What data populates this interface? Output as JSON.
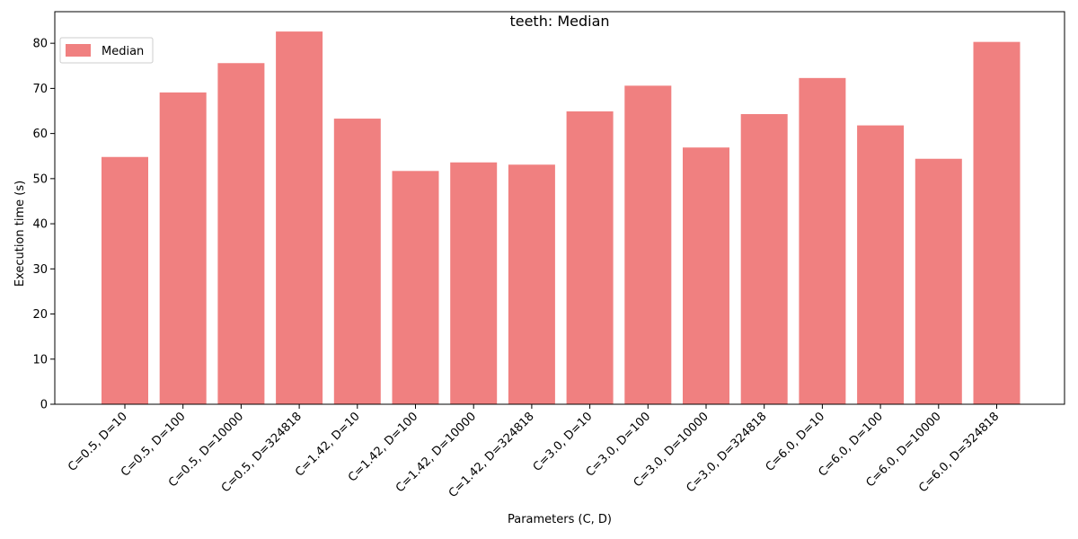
{
  "chart_data": {
    "type": "bar",
    "title": "teeth: Median",
    "xlabel": "Parameters (C, D)",
    "ylabel": "Execution time (s)",
    "ylim": [
      0,
      87
    ],
    "yticks": [
      0,
      10,
      20,
      30,
      40,
      50,
      60,
      70,
      80
    ],
    "grid": false,
    "legend_position": "top-left",
    "categories": [
      "C=0.5, D=10",
      "C=0.5, D=100",
      "C=0.5, D=10000",
      "C=0.5, D=324818",
      "C=1.42, D=10",
      "C=1.42, D=100",
      "C=1.42, D=10000",
      "C=1.42, D=324818",
      "C=3.0, D=10",
      "C=3.0, D=100",
      "C=3.0, D=10000",
      "C=3.0, D=324818",
      "C=6.0, D=10",
      "C=6.0, D=100",
      "C=6.0, D=10000",
      "C=6.0, D=324818"
    ],
    "series": [
      {
        "name": "Median",
        "color": "#f08080",
        "values": [
          54.8,
          69.1,
          75.6,
          82.6,
          63.3,
          51.7,
          53.6,
          53.1,
          64.9,
          70.6,
          56.9,
          64.3,
          72.3,
          61.8,
          54.4,
          80.3
        ]
      }
    ]
  }
}
